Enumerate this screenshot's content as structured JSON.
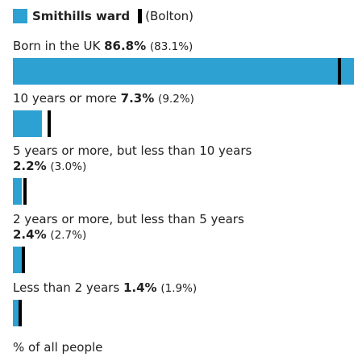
{
  "colors": {
    "bar": "#2da1d2",
    "marker": "#000000",
    "text": "#222222"
  },
  "legend": {
    "area": "Smithills ward",
    "comparator": "(Bolton)"
  },
  "footer": "% of all people",
  "chart_data": {
    "type": "bar",
    "orientation": "horizontal",
    "categories": [
      "Born in the UK",
      "10 years or more",
      "5 years or more, but less than 10 years",
      "2 years or more, but less than 5 years",
      "Less than 2 years"
    ],
    "series": [
      {
        "name": "Smithills ward",
        "values": [
          86.8,
          7.3,
          2.2,
          2.4,
          1.4
        ]
      },
      {
        "name": "Bolton",
        "values": [
          83.1,
          9.2,
          3.0,
          2.7,
          1.9
        ]
      }
    ],
    "value_labels": [
      "86.8%",
      "7.3%",
      "2.2%",
      "2.4%",
      "1.4%"
    ],
    "comparator_labels": [
      "(83.1%)",
      "(9.2%)",
      "(3.0%)",
      "(2.7%)",
      "(1.9%)"
    ],
    "xlim": [
      0,
      86.8
    ],
    "unit": "% of all people"
  }
}
